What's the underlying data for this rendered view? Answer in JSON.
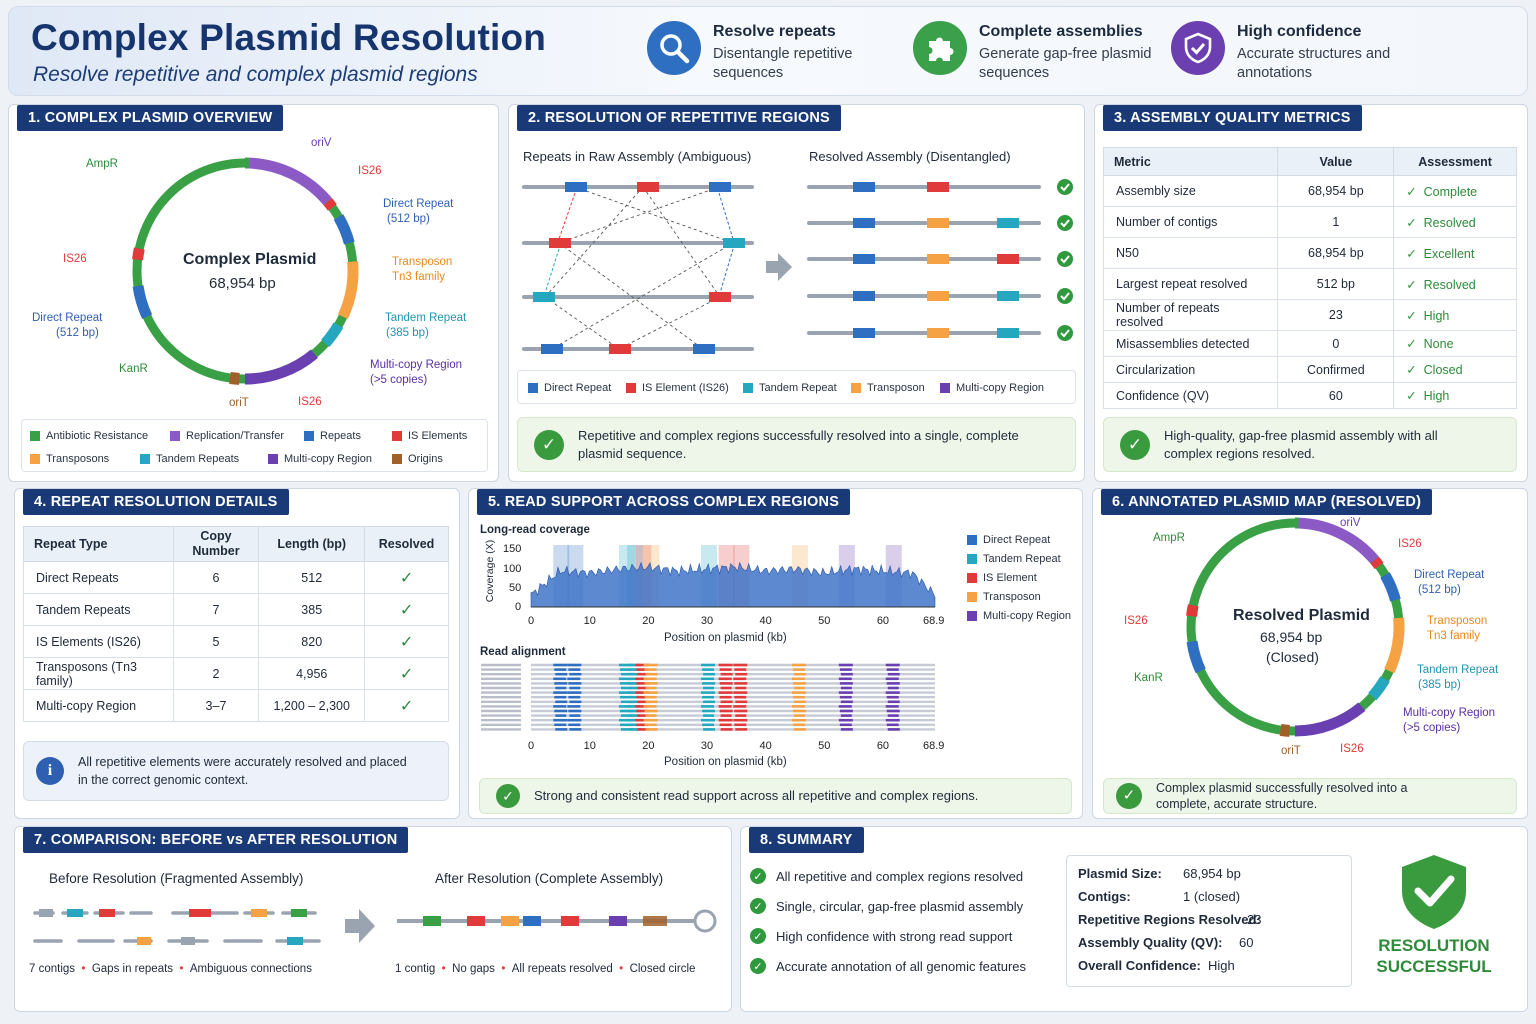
{
  "header": {
    "title": "Complex Plasmid Resolution",
    "subtitle": "Resolve repetitive and complex plasmid regions",
    "features": [
      {
        "icon": "magnifier-icon",
        "title": "Resolve repeats",
        "desc": "Disentangle repetitive sequences",
        "color": "#2f6fc1"
      },
      {
        "icon": "puzzle-icon",
        "title": "Complete assemblies",
        "desc": "Generate gap-free plasmid sequences",
        "color": "#3aa04a"
      },
      {
        "icon": "shield-check-icon",
        "title": "High confidence",
        "desc": "Accurate structures and annotations",
        "color": "#6b3fb0"
      }
    ]
  },
  "colors": {
    "resistance": "#3aa046",
    "replication": "#8c5ac4",
    "repeats": "#2f6fc1",
    "is": "#e03a3a",
    "transposon": "#f4a243",
    "tandem": "#25a8bf",
    "multicopy": "#6a3fb0",
    "origin": "#a0602a"
  },
  "panel1": {
    "title": "1. COMPLEX PLASMID OVERVIEW",
    "center_name": "Complex Plasmid",
    "center_size": "68,954 bp",
    "labels": {
      "oriv": "oriV",
      "is26_top": "IS26",
      "dr_right": "Direct Repeat",
      "dr_right_len": "(512 bp)",
      "trans": "Transposon",
      "trans_fam": "Tn3 family",
      "tandem": "Tandem Repeat",
      "tandem_len": "(385 bp)",
      "multi": "Multi-copy Region",
      "multi_n": "(>5 copies)",
      "is26_bot": "IS26",
      "orit": "oriT",
      "kanr": "KanR",
      "dr_left": "Direct Repeat",
      "dr_left_len": "(512 bp)",
      "is26_left": "IS26",
      "ampr": "AmpR"
    },
    "legend": [
      "Antibiotic Resistance",
      "Replication/Transfer",
      "Repeats",
      "IS Elements",
      "Transposons",
      "Tandem Repeats",
      "Multi-copy Region",
      "Origins"
    ]
  },
  "panel2": {
    "title": "2. RESOLUTION OF REPETITIVE REGIONS",
    "left_head": "Repeats in Raw Assembly (Ambiguous)",
    "right_head": "Resolved Assembly (Disentangled)",
    "legend": [
      "Direct Repeat",
      "IS Element (IS26)",
      "Tandem Repeat",
      "Transposon",
      "Multi-copy Region"
    ],
    "ok": "Repetitive and complex regions successfully resolved into a single, complete plasmid sequence."
  },
  "panel3": {
    "title": "3. ASSEMBLY QUALITY METRICS",
    "headers": [
      "Metric",
      "Value",
      "Assessment"
    ],
    "rows": [
      [
        "Assembly size",
        "68,954 bp",
        "Complete"
      ],
      [
        "Number of contigs",
        "1",
        "Resolved"
      ],
      [
        "N50",
        "68,954 bp",
        "Excellent"
      ],
      [
        "Largest repeat resolved",
        "512 bp",
        "Resolved"
      ],
      [
        "Number of repeats resolved",
        "23",
        "High"
      ],
      [
        "Misassemblies detected",
        "0",
        "None"
      ],
      [
        "Circularization",
        "Confirmed",
        "Closed"
      ],
      [
        "Confidence (QV)",
        "60",
        "High"
      ]
    ],
    "ok": "High-quality, gap-free plasmid assembly with all complex regions resolved."
  },
  "panel4": {
    "title": "4. REPEAT RESOLUTION DETAILS",
    "headers": [
      "Repeat Type",
      "Copy Number",
      "Length (bp)",
      "Resolved"
    ],
    "rows": [
      [
        "Direct Repeats",
        "6",
        "512"
      ],
      [
        "Tandem Repeats",
        "7",
        "385"
      ],
      [
        "IS Elements (IS26)",
        "5",
        "820"
      ],
      [
        "Transposons (Tn3 family)",
        "2",
        "4,956"
      ],
      [
        "Multi-copy Region",
        "3–7",
        "1,200 – 2,300"
      ]
    ],
    "info": "All repetitive elements were accurately resolved and placed in the correct genomic context."
  },
  "panel5": {
    "title": "5. READ SUPPORT ACROSS COMPLEX REGIONS",
    "cov_title": "Long-read coverage",
    "ylabel": "Coverage (X)",
    "yticks": [
      "150",
      "100",
      "50",
      "0"
    ],
    "xticks": [
      "0",
      "10",
      "20",
      "30",
      "40",
      "50",
      "60",
      "68.9"
    ],
    "xlabel": "Position on plasmid (kb)",
    "aln_title": "Read alignment",
    "legend": [
      "Direct Repeat",
      "Tandem Repeat",
      "IS Element",
      "Transposon",
      "Multi-copy Region"
    ],
    "ok": "Strong and consistent read support across all repetitive and complex regions."
  },
  "chart_data": {
    "type": "area",
    "title": "Long-read coverage",
    "xlabel": "Position on plasmid (kb)",
    "ylabel": "Coverage (X)",
    "xlim": [
      0,
      68.9
    ],
    "ylim": [
      0,
      150
    ],
    "x": [
      0,
      5,
      10,
      15,
      20,
      25,
      30,
      35,
      40,
      45,
      50,
      55,
      60,
      65,
      68.9
    ],
    "values": [
      30,
      90,
      85,
      95,
      100,
      90,
      95,
      100,
      90,
      95,
      85,
      95,
      90,
      85,
      30
    ]
  },
  "panel6": {
    "title": "6. ANNOTATED PLASMID MAP (RESOLVED)",
    "center_name": "Resolved Plasmid",
    "center_size": "68,954 bp",
    "center_state": "(Closed)",
    "ok": "Complex plasmid successfully resolved into a complete, accurate structure."
  },
  "panel7": {
    "title": "7. COMPARISON: BEFORE vs AFTER RESOLUTION",
    "before_head": "Before Resolution (Fragmented Assembly)",
    "after_head": "After Resolution (Complete Assembly)",
    "before_notes": [
      "7 contigs",
      "Gaps in repeats",
      "Ambiguous connections"
    ],
    "after_notes": [
      "1 contig",
      "No gaps",
      "All repeats resolved",
      "Closed circle"
    ]
  },
  "panel8": {
    "title": "8. SUMMARY",
    "items": [
      "All repetitive and complex regions resolved",
      "Single, circular, gap-free plasmid assembly",
      "High confidence with strong read support",
      "Accurate annotation of all genomic features"
    ],
    "kv": [
      [
        "Plasmid Size:",
        "68,954 bp"
      ],
      [
        "Contigs:",
        "1 (closed)"
      ],
      [
        "Repetitive Regions Resolved:",
        "23"
      ],
      [
        "Assembly Quality (QV):",
        "60"
      ],
      [
        "Overall Confidence:",
        "High"
      ]
    ],
    "badge": "RESOLUTION SUCCESSFUL",
    "badge_l1": "RESOLUTION",
    "badge_l2": "SUCCESSFUL"
  }
}
